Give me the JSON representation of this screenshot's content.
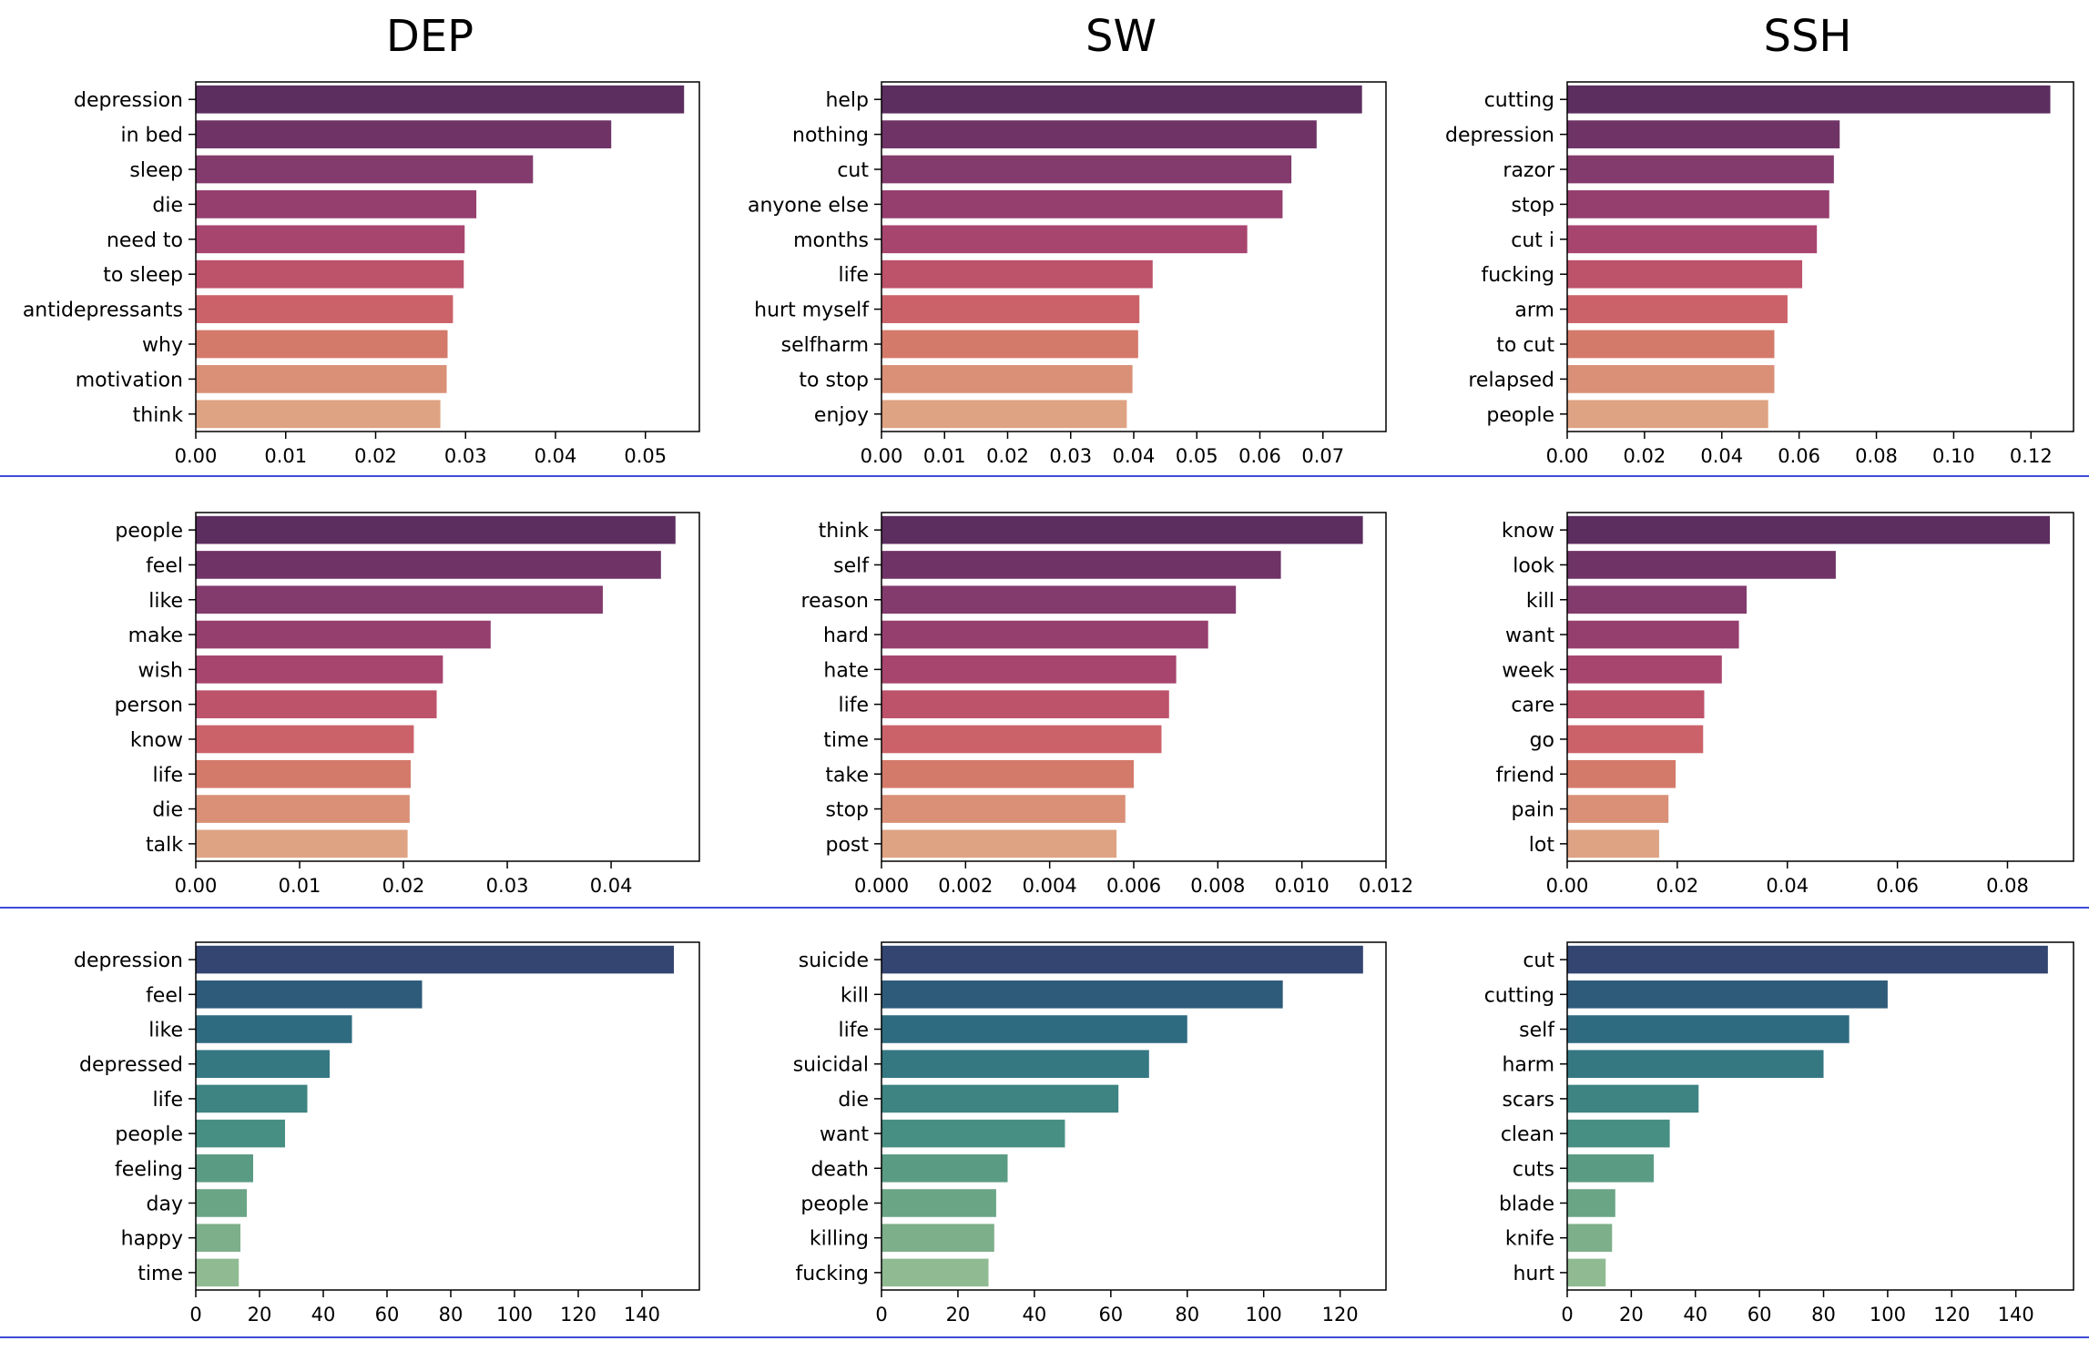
{
  "columns": [
    "DEP",
    "SW",
    "SSH"
  ],
  "palettes": {
    "magma_row": [
      "#5c2d5f",
      "#6f3366",
      "#823b6c",
      "#953f6e",
      "#a8456f",
      "#bd526b",
      "#cc6269",
      "#d47a6a",
      "#d99077",
      "#dea383"
    ],
    "crest_row": [
      "#334570",
      "#2f5b7a",
      "#2f6b80",
      "#357882",
      "#3d8483",
      "#488f83",
      "#5a9b84",
      "#6aa585",
      "#7daf8a",
      "#90bb92"
    ]
  },
  "chart_data": [
    {
      "type": "bar",
      "orientation": "horizontal",
      "palette": "magma_row",
      "categories": [
        "depression",
        "in bed",
        "sleep",
        "die",
        "need to",
        "to sleep",
        "antidepressants",
        "why",
        "motivation",
        "think"
      ],
      "values": [
        0.0543,
        0.0462,
        0.0375,
        0.0312,
        0.0299,
        0.0298,
        0.0286,
        0.028,
        0.0279,
        0.0272
      ],
      "xlim": [
        0,
        0.056
      ],
      "xticks": [
        "0.00",
        "0.01",
        "0.02",
        "0.03",
        "0.04",
        "0.05"
      ],
      "xtick_values": [
        0,
        0.01,
        0.02,
        0.03,
        0.04,
        0.05
      ]
    },
    {
      "type": "bar",
      "orientation": "horizontal",
      "palette": "magma_row",
      "categories": [
        "help",
        "nothing",
        "cut",
        "anyone else",
        "months",
        "life",
        "hurt myself",
        "selfharm",
        "to stop",
        "enjoy"
      ],
      "values": [
        0.0762,
        0.069,
        0.065,
        0.0636,
        0.058,
        0.043,
        0.0409,
        0.0407,
        0.0398,
        0.0389
      ],
      "xlim": [
        0,
        0.08
      ],
      "xticks": [
        "0.00",
        "0.01",
        "0.02",
        "0.03",
        "0.04",
        "0.05",
        "0.06",
        "0.07"
      ],
      "xtick_values": [
        0,
        0.01,
        0.02,
        0.03,
        0.04,
        0.05,
        0.06,
        0.07
      ]
    },
    {
      "type": "bar",
      "orientation": "horizontal",
      "palette": "magma_row",
      "categories": [
        "cutting",
        "depression",
        "razor",
        "stop",
        "cut i",
        "fucking",
        "arm",
        "to cut",
        "relapsed",
        "people"
      ],
      "values": [
        0.125,
        0.0705,
        0.069,
        0.0678,
        0.0646,
        0.0608,
        0.057,
        0.0536,
        0.0536,
        0.052
      ],
      "xlim": [
        0,
        0.131
      ],
      "xticks": [
        "0.00",
        "0.02",
        "0.04",
        "0.06",
        "0.08",
        "0.10",
        "0.12"
      ],
      "xtick_values": [
        0,
        0.02,
        0.04,
        0.06,
        0.08,
        0.1,
        0.12
      ]
    },
    {
      "type": "bar",
      "orientation": "horizontal",
      "palette": "magma_row",
      "categories": [
        "people",
        "feel",
        "like",
        "make",
        "wish",
        "person",
        "know",
        "life",
        "die",
        "talk"
      ],
      "values": [
        0.0462,
        0.0448,
        0.0392,
        0.0284,
        0.0238,
        0.0232,
        0.021,
        0.0207,
        0.0206,
        0.0204
      ],
      "xlim": [
        0,
        0.0485
      ],
      "xticks": [
        "0.00",
        "0.01",
        "0.02",
        "0.03",
        "0.04"
      ],
      "xtick_values": [
        0,
        0.01,
        0.02,
        0.03,
        0.04
      ]
    },
    {
      "type": "bar",
      "orientation": "horizontal",
      "palette": "magma_row",
      "categories": [
        "think",
        "self",
        "reason",
        "hard",
        "hate",
        "life",
        "time",
        "take",
        "stop",
        "post"
      ],
      "values": [
        0.01145,
        0.0095,
        0.00843,
        0.00777,
        0.00701,
        0.00684,
        0.00666,
        0.006,
        0.0058,
        0.00559
      ],
      "xlim": [
        0,
        0.012
      ],
      "xticks": [
        "0.000",
        "0.002",
        "0.004",
        "0.006",
        "0.008",
        "0.010",
        "0.012"
      ],
      "xtick_values": [
        0,
        0.002,
        0.004,
        0.006,
        0.008,
        0.01,
        0.012
      ]
    },
    {
      "type": "bar",
      "orientation": "horizontal",
      "palette": "magma_row",
      "categories": [
        "know",
        "look",
        "kill",
        "want",
        "week",
        "care",
        "go",
        "friend",
        "pain",
        "lot"
      ],
      "values": [
        0.0877,
        0.0488,
        0.0326,
        0.0312,
        0.0281,
        0.0249,
        0.0247,
        0.0197,
        0.0184,
        0.0167
      ],
      "xlim": [
        0,
        0.092
      ],
      "xticks": [
        "0.00",
        "0.02",
        "0.04",
        "0.06",
        "0.08"
      ],
      "xtick_values": [
        0,
        0.02,
        0.04,
        0.06,
        0.08
      ]
    },
    {
      "type": "bar",
      "orientation": "horizontal",
      "palette": "crest_row",
      "categories": [
        "depression",
        "feel",
        "like",
        "depressed",
        "life",
        "people",
        "feeling",
        "day",
        "happy",
        "time"
      ],
      "values": [
        150,
        71,
        49,
        42,
        35,
        28,
        18,
        16,
        14,
        13.5
      ],
      "xlim": [
        0,
        158
      ],
      "xticks": [
        "0",
        "20",
        "40",
        "60",
        "80",
        "100",
        "120",
        "140"
      ],
      "xtick_values": [
        0,
        20,
        40,
        60,
        80,
        100,
        120,
        140
      ]
    },
    {
      "type": "bar",
      "orientation": "horizontal",
      "palette": "crest_row",
      "categories": [
        "suicide",
        "kill",
        "life",
        "suicidal",
        "die",
        "want",
        "death",
        "people",
        "killing",
        "fucking"
      ],
      "values": [
        126,
        105,
        80,
        70,
        62,
        48,
        33,
        30,
        29.5,
        28
      ],
      "xlim": [
        0,
        132
      ],
      "xticks": [
        "0",
        "20",
        "40",
        "60",
        "80",
        "100",
        "120"
      ],
      "xtick_values": [
        0,
        20,
        40,
        60,
        80,
        100,
        120
      ]
    },
    {
      "type": "bar",
      "orientation": "horizontal",
      "palette": "crest_row",
      "categories": [
        "cut",
        "cutting",
        "self",
        "harm",
        "scars",
        "clean",
        "cuts",
        "blade",
        "knife",
        "hurt"
      ],
      "values": [
        150,
        100,
        88,
        80,
        41,
        32,
        27,
        15,
        14,
        12
      ],
      "xlim": [
        0,
        158
      ],
      "xticks": [
        "0",
        "20",
        "40",
        "60",
        "80",
        "100",
        "120",
        "140"
      ],
      "xtick_values": [
        0,
        20,
        40,
        60,
        80,
        100,
        120,
        140
      ]
    }
  ]
}
